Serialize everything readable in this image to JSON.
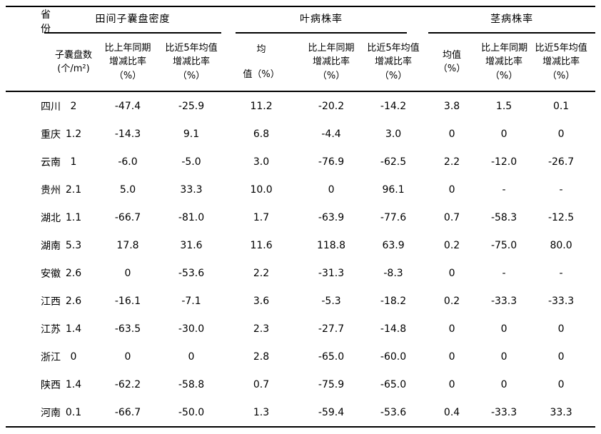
{
  "table": {
    "province_header": "省份",
    "groups": [
      {
        "title": "田间子囊盘密度",
        "columns": [
          {
            "lines": [
              "子囊盘数",
              "(个/m²)"
            ]
          },
          {
            "lines": [
              "比上年同期",
              "增减比率",
              "（%）"
            ]
          },
          {
            "lines": [
              "比近5年均值",
              "增减比率",
              "（%）"
            ]
          }
        ]
      },
      {
        "title": "叶病株率",
        "columns": [
          {
            "lines": [
              "均",
              "值（%）"
            ]
          },
          {
            "lines": [
              "比上年同期",
              "增减比率",
              "（%）"
            ]
          },
          {
            "lines": [
              "比近5年均值",
              "增减比率",
              "（%）"
            ]
          }
        ]
      },
      {
        "title": "茎病株率",
        "columns": [
          {
            "lines": [
              "均值",
              "（%）"
            ]
          },
          {
            "lines": [
              "比上年同期",
              "增减比率",
              "（%）"
            ]
          },
          {
            "lines": [
              "比近5年均值",
              "增减比率",
              "（%）"
            ]
          }
        ]
      }
    ],
    "rows": [
      {
        "province": "四川",
        "values": [
          "2",
          "-47.4",
          "-25.9",
          "11.2",
          "-20.2",
          "-14.2",
          "3.8",
          "1.5",
          "0.1"
        ]
      },
      {
        "province": "重庆",
        "values": [
          "1.2",
          "-14.3",
          "9.1",
          "6.8",
          "-4.4",
          "3.0",
          "0",
          "0",
          "0"
        ]
      },
      {
        "province": "云南",
        "values": [
          "1",
          "-6.0",
          "-5.0",
          "3.0",
          "-76.9",
          "-62.5",
          "2.2",
          "-12.0",
          "-26.7"
        ]
      },
      {
        "province": "贵州",
        "values": [
          "2.1",
          "5.0",
          "33.3",
          "10.0",
          "0",
          "96.1",
          "0",
          "-",
          "-"
        ]
      },
      {
        "province": "湖北",
        "values": [
          "1.1",
          "-66.7",
          "-81.0",
          "1.7",
          "-63.9",
          "-77.6",
          "0.7",
          "-58.3",
          "-12.5"
        ]
      },
      {
        "province": "湖南",
        "values": [
          "5.3",
          "17.8",
          "31.6",
          "11.6",
          "118.8",
          "63.9",
          "0.2",
          "-75.0",
          "80.0"
        ]
      },
      {
        "province": "安徽",
        "values": [
          "2.6",
          "0",
          "-53.6",
          "2.2",
          "-31.3",
          "-8.3",
          "0",
          "-",
          "-"
        ]
      },
      {
        "province": "江西",
        "values": [
          "2.6",
          "-16.1",
          "-7.1",
          "3.6",
          "-5.3",
          "-18.2",
          "0.2",
          "-33.3",
          "-33.3"
        ]
      },
      {
        "province": "江苏",
        "values": [
          "1.4",
          "-63.5",
          "-30.0",
          "2.3",
          "-27.7",
          "-14.8",
          "0",
          "0",
          "0"
        ]
      },
      {
        "province": "浙江",
        "values": [
          "0",
          "0",
          "0",
          "2.8",
          "-65.0",
          "-60.0",
          "0",
          "0",
          "0"
        ]
      },
      {
        "province": "陕西",
        "values": [
          "1.4",
          "-62.2",
          "-58.8",
          "0.7",
          "-75.9",
          "-65.0",
          "0",
          "0",
          "0"
        ]
      },
      {
        "province": "河南",
        "values": [
          "0.1",
          "-66.7",
          "-50.0",
          "1.3",
          "-59.4",
          "-53.6",
          "0.4",
          "-33.3",
          "33.3"
        ]
      }
    ],
    "colors": {
      "text": "#000000",
      "background": "#ffffff",
      "rule": "#000000"
    }
  }
}
